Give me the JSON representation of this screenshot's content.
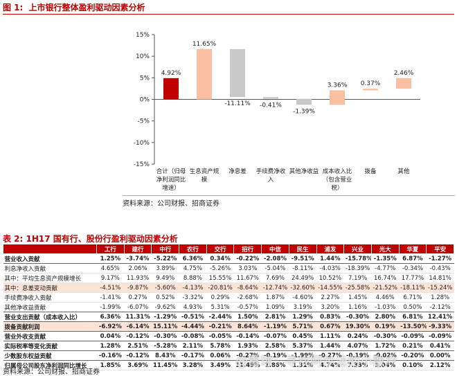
{
  "figure": {
    "label": "图 1:",
    "title": "上市银行整体盈利驱动因素分析"
  },
  "chart_data": {
    "type": "bar",
    "title": "",
    "xlabel": "",
    "ylabel": "",
    "ylim": [
      -15,
      15
    ],
    "yticks": [
      -15,
      -10,
      -5,
      0,
      5,
      10,
      15
    ],
    "ytick_labels": [
      "-15%",
      "-10%",
      "-5%",
      "0%",
      "5%",
      "10%",
      "15%"
    ],
    "grid": false,
    "categories": [
      "合计（归母净利润同比增速）",
      "生息资产规模",
      "净息差",
      "手续费净收入",
      "其他净收益",
      "成本收入比（包含营业税）",
      "拨备",
      "其他"
    ],
    "category_lines": [
      [
        "合计（归母",
        "净利润同比",
        "增速）"
      ],
      [
        "生息资产规",
        "模"
      ],
      [
        "净息差"
      ],
      [
        "手续费净收",
        "入"
      ],
      [
        "其他净收益"
      ],
      [
        "成本收入比",
        "（包含营业",
        "税）"
      ],
      [
        "拨备"
      ],
      [
        "其他"
      ]
    ],
    "values": [
      4.92,
      11.65,
      -11.11,
      -0.41,
      -1.39,
      3.36,
      0.37,
      2.46
    ],
    "value_labels": [
      "4.92%",
      "11.65%",
      "-11.11%",
      "-0.41%",
      "-1.39%",
      "3.36%",
      "0.37%",
      "2.46%"
    ],
    "colors": [
      "#c00000",
      "#f8c0a0",
      "#c8c8c8",
      "#c8c8c8",
      "#c8c8c8",
      "#f8c0a0",
      "#f8c0a0",
      "#f8c0a0"
    ]
  },
  "source_text": "资料来源：公司财报、招商证券",
  "table": {
    "label": "表 2:",
    "title": "1H17 国有行、股份行盈利驱动因素分析",
    "headers": [
      "",
      "工行",
      "建行",
      "中行",
      "农行",
      "交行",
      "招行",
      "中信",
      "民生",
      "浦发",
      "兴业",
      "光大",
      "华夏",
      "平安"
    ],
    "rows": [
      {
        "label": "营业收入贡献",
        "style": "bold thick",
        "values": [
          "1.25%",
          "-3.74%",
          "-5.22%",
          "6.36%",
          "0.34%",
          "-0.22%",
          "-2.08%",
          "-9.51%",
          "1.44%",
          "-15.78%",
          "-1.35%",
          "6.87%",
          "-1.27%"
        ]
      },
      {
        "label": "利息净收入贡献",
        "style": "",
        "values": [
          "4.65%",
          "2.06%",
          "3.89%",
          "4.75%",
          "-5.26%",
          "3.03%",
          "-5.04%",
          "-8.11%",
          "-4.03%",
          "-18.39%",
          "-4.77%",
          "-0.34%",
          "-0.43%"
        ]
      },
      {
        "label": "其中：平均生息资产规模增长",
        "style": "",
        "values": [
          "9.17%",
          "11.93%",
          "9.49%",
          "8.88%",
          "15.55%",
          "11.67%",
          "7.69%",
          "24.49%",
          "10.52%",
          "7.19%",
          "16.74%",
          "17.77%",
          "14.81%"
        ]
      },
      {
        "label": "其中：息差变动贡献",
        "style": "hl",
        "values": [
          "-4.51%",
          "-9.87%",
          "-5.60%",
          "-4.13%",
          "-20.81%",
          "-8.64%",
          "-12.74%",
          "-32.60%",
          "-14.55%",
          "-25.58%",
          "-21.52%",
          "-18.11%",
          "-15.24%"
        ]
      },
      {
        "label": "手续费净收入贡献",
        "style": "",
        "values": [
          "-1.41%",
          "0.27%",
          "0.52%",
          "-3.32%",
          "0.29%",
          "-2.68%",
          "1.87%",
          "-4.60%",
          "2.27%",
          "1.45%",
          "4.46%",
          "6.71%",
          "1.28%"
        ]
      },
      {
        "label": "其他净收益贡献",
        "style": "thick",
        "values": [
          "-1.99%",
          "-6.07%",
          "-9.62%",
          "4.93%",
          "5.31%",
          "-0.57%",
          "1.09%",
          "3.19%",
          "3.20%",
          "1.16%",
          "-1.03%",
          "0.50%",
          "-2.12%"
        ]
      },
      {
        "label": "营业支出贡献（成本收入比）",
        "style": "bold thick",
        "values": [
          "6.36%",
          "11.31%",
          "-1.29%",
          "-0.51%",
          "-2.44%",
          "1.50%",
          "2.81%",
          "1.29%",
          "0.83%",
          "-0.30%",
          "2.80%",
          "6.81%",
          "12.41%"
        ]
      },
      {
        "label": "拨备贡献利润",
        "style": "bold hl thick",
        "values": [
          "-6.92%",
          "-6.14%",
          "15.11%",
          "-4.44%",
          "-0.21%",
          "8.64%",
          "-1.19%",
          "5.71%",
          "0.67%",
          "19.30%",
          "0.19%",
          "-13.50%",
          "-9.33%"
        ]
      },
      {
        "label": "营业外收支贡献",
        "style": "bold thick",
        "values": [
          "0.04%",
          "-0.12%",
          "-0.30%",
          "-0.08%",
          "-0.05%",
          "-0.14%",
          "-0.07%",
          "0.45%",
          "1.11%",
          "0.24%",
          "-0.30%",
          "-0.09%",
          "-0.09%"
        ]
      },
      {
        "label": "实际税率等变化贡献",
        "style": "bold thick",
        "values": [
          "1.28%",
          "2.51%",
          "-5.28%",
          "2.11%",
          "5.78%",
          "1.93%",
          "2.58%",
          "5.37%",
          "1.44%",
          "4.07%",
          "1.72%",
          "0.21%",
          "0.41%"
        ]
      },
      {
        "label": "少数股东权益贡献",
        "style": "bold thick",
        "values": [
          "-0.16%",
          "-0.12%",
          "8.43%",
          "-0.17%",
          "0.06%",
          "-0.27%",
          "-0.19%",
          "-1.99%",
          "-0.27%",
          "-0.19%",
          "-0.02%",
          "-0.20%",
          "0.00%"
        ]
      },
      {
        "label": "归属母公司股东净利润同比增长",
        "style": "bold",
        "values": [
          "1.85%",
          "3.69%",
          "11.45%",
          "3.28%",
          "3.49%",
          "11.49%",
          "1.86%",
          "1.31%",
          "4.74%",
          "7.33%",
          "3.04%",
          "0.10%",
          "2.12%"
        ]
      }
    ]
  },
  "table_source_text": "资料来源：公司财报、招商证券",
  "watermark_text": "@雪球：寻找阿尔法的小散户"
}
